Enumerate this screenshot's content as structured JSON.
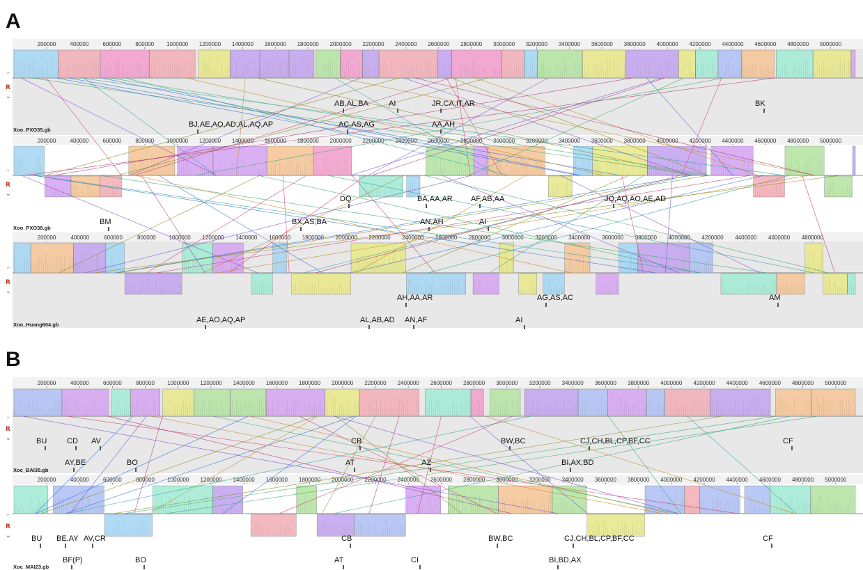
{
  "colors": {
    "panel_bg": "#e8e8e8",
    "ruler_bg": "#f0f0f0",
    "palette": [
      "#b7e5a6",
      "#c6a8f0",
      "#f3a2cf",
      "#b3c3f5",
      "#a6ecd6",
      "#f5c79a",
      "#f4b2ba",
      "#e8e98e",
      "#d7a8f3",
      "#a8d8f5"
    ]
  },
  "ticks": {
    "A1": [
      "200000",
      "400000",
      "600000",
      "800000",
      "1000000",
      "1200000",
      "1400000",
      "1600000",
      "1800000",
      "2000000",
      "2200000",
      "2400000",
      "2600000",
      "2800000",
      "3000000",
      "3200000",
      "3400000",
      "3600000",
      "3800000",
      "4000000",
      "4200000",
      "4400000",
      "4600000",
      "4800000",
      "5000000"
    ],
    "A2": [
      "200000",
      "400000",
      "600000",
      "800000",
      "1000000",
      "1200000",
      "1400000",
      "1600000",
      "1800000",
      "2000000",
      "2200000",
      "2400000",
      "2600000",
      "2800000",
      "3000000",
      "3200000",
      "3400000",
      "3600000",
      "3800000",
      "4000000",
      "4200000",
      "4400000",
      "4600000",
      "4800000",
      "5000000"
    ],
    "A3": [
      "200000",
      "400000",
      "600000",
      "800000",
      "1000000",
      "1200000",
      "1400000",
      "1600000",
      "1800000",
      "2000000",
      "2200000",
      "2400000",
      "2600000",
      "2800000",
      "3000000",
      "3200000",
      "3400000",
      "3600000",
      "3800000",
      "4000000",
      "4200000",
      "4400000",
      "4600000",
      "4800000"
    ],
    "B1": [
      "200000",
      "400000",
      "600000",
      "800000",
      "1000000",
      "1200000",
      "1400000",
      "1600000",
      "1800000",
      "2000000",
      "2200000",
      "2400000",
      "2600000",
      "2800000",
      "3000000",
      "3200000",
      "3400000",
      "3600000",
      "3800000",
      "4000000",
      "4200000",
      "4400000",
      "4600000",
      "4800000",
      "5000000"
    ],
    "B2": [
      "200000",
      "400000",
      "600000",
      "800000",
      "1000000",
      "1200000",
      "1400000",
      "1600000",
      "1800000",
      "2000000",
      "2200000",
      "2400000",
      "2600000",
      "2800000",
      "3000000",
      "3200000",
      "3400000",
      "3600000",
      "3800000",
      "4000000",
      "4200000",
      "4400000",
      "4600000",
      "4800000",
      "5000000"
    ]
  },
  "panels": {
    "A": {
      "letter": "A",
      "genomes": [
        {
          "label": "Xoo_PXO35.gb",
          "annotations": [
            {
              "text": "AB,AL,BA"
            },
            {
              "text": "AI"
            },
            {
              "text": "JR,CA,IT,AR"
            },
            {
              "text": "BK"
            },
            {
              "text": "BJ,AE,AO,AD,AL,AQ,AP"
            },
            {
              "text": "AC,AS,AG"
            },
            {
              "text": "AA,AH"
            }
          ]
        },
        {
          "label": "Xoo_PXO38.gb",
          "annotations": [
            {
              "text": "DQ"
            },
            {
              "text": "BA,AA,AR"
            },
            {
              "text": "AF,AB,AA"
            },
            {
              "text": "JQ,AQ,AO,AE,AD"
            },
            {
              "text": "BM"
            },
            {
              "text": "BX,AS,BA"
            },
            {
              "text": "AN,AH"
            },
            {
              "text": "AI"
            }
          ]
        },
        {
          "label": "Xoo_Huang604.gb",
          "annotations": [
            {
              "text": "AH,AA,AR"
            },
            {
              "text": "AG,AS,AC"
            },
            {
              "text": "AM"
            },
            {
              "text": "AE,AO,AQ,AP"
            },
            {
              "text": "AL,AB,AD"
            },
            {
              "text": "AN,AF"
            },
            {
              "text": "AI"
            }
          ]
        }
      ]
    },
    "B": {
      "letter": "B",
      "genomes": [
        {
          "label": "Xoc_BAI35.gb",
          "annotations": [
            {
              "text": "BU"
            },
            {
              "text": "CD"
            },
            {
              "text": "AV"
            },
            {
              "text": "CB"
            },
            {
              "text": "BW,BC"
            },
            {
              "text": "CJ,CH,BL,CP,BF,CC"
            },
            {
              "text": "CF"
            },
            {
              "text": "AY,BE"
            },
            {
              "text": "BO"
            },
            {
              "text": "AT"
            },
            {
              "text": "AZ"
            },
            {
              "text": "BI,AX,BD"
            }
          ]
        },
        {
          "label": "Xoc_MAI23.gb",
          "annotations": [
            {
              "text": "BU"
            },
            {
              "text": "BE,AY"
            },
            {
              "text": "AV,CR"
            },
            {
              "text": "CB"
            },
            {
              "text": "BW,BC"
            },
            {
              "text": "CJ,CH,BL,CP,BF,CC"
            },
            {
              "text": "CF"
            },
            {
              "text": "BF(P)"
            },
            {
              "text": "BO"
            },
            {
              "text": "AT"
            },
            {
              "text": "CI"
            },
            {
              "text": "BI,BD,AX"
            }
          ]
        }
      ]
    },
    "controls": {
      "r_label": "R",
      "up_glyph": "⌃",
      "down_glyph": "⌄"
    }
  }
}
